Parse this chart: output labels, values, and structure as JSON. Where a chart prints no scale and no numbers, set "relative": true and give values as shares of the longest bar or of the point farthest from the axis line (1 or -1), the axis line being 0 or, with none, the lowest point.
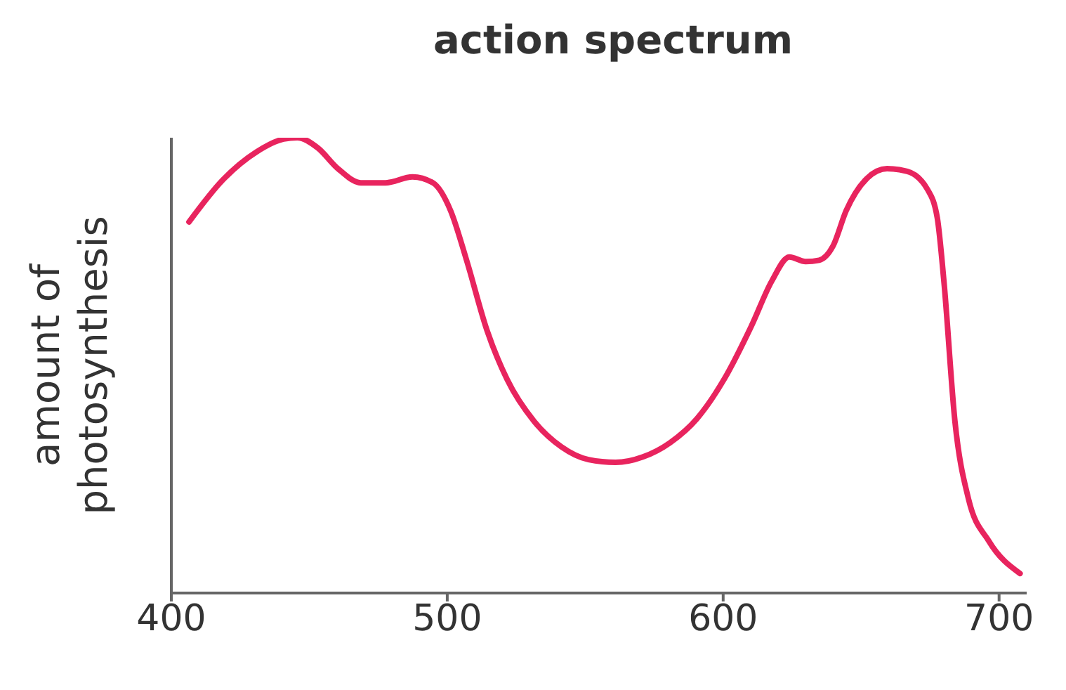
{
  "chart_data": {
    "type": "line",
    "title": "action spectrum",
    "ylabel": "amount of photosynthesis",
    "relative": true,
    "x": [
      406.4,
      418.6,
      430.9,
      440.7,
      445.6,
      453,
      460.4,
      468.7,
      477.6,
      487.4,
      494.8,
      501.2,
      507,
      514.4,
      521.7,
      531.5,
      541.4,
      551.2,
      561,
      570.9,
      580.7,
      590.5,
      600.3,
      610.2,
      617.6,
      624,
      629.9,
      634.8,
      639.8,
      644.6,
      652,
      659.4,
      666.7,
      674.1,
      677.6,
      680,
      684,
      688.9,
      696.3,
      707.6
    ],
    "series": [
      {
        "color": "#e8245e",
        "values": [
          0.815,
          0.907,
          0.969,
          0.997,
          1.0,
          0.978,
          0.932,
          0.901,
          0.901,
          0.914,
          0.901,
          0.84,
          0.731,
          0.577,
          0.469,
          0.377,
          0.321,
          0.293,
          0.287,
          0.299,
          0.33,
          0.383,
          0.469,
          0.586,
          0.685,
          0.738,
          0.728,
          0.731,
          0.762,
          0.84,
          0.91,
          0.932,
          0.926,
          0.886,
          0.824,
          0.685,
          0.377,
          0.207,
          0.114,
          0.043
        ]
      }
    ],
    "xlim": [
      400,
      710
    ],
    "xticks": [
      400,
      500,
      600,
      700
    ],
    "grid": false,
    "legend": false,
    "marker": "none",
    "line_style": "solid"
  }
}
